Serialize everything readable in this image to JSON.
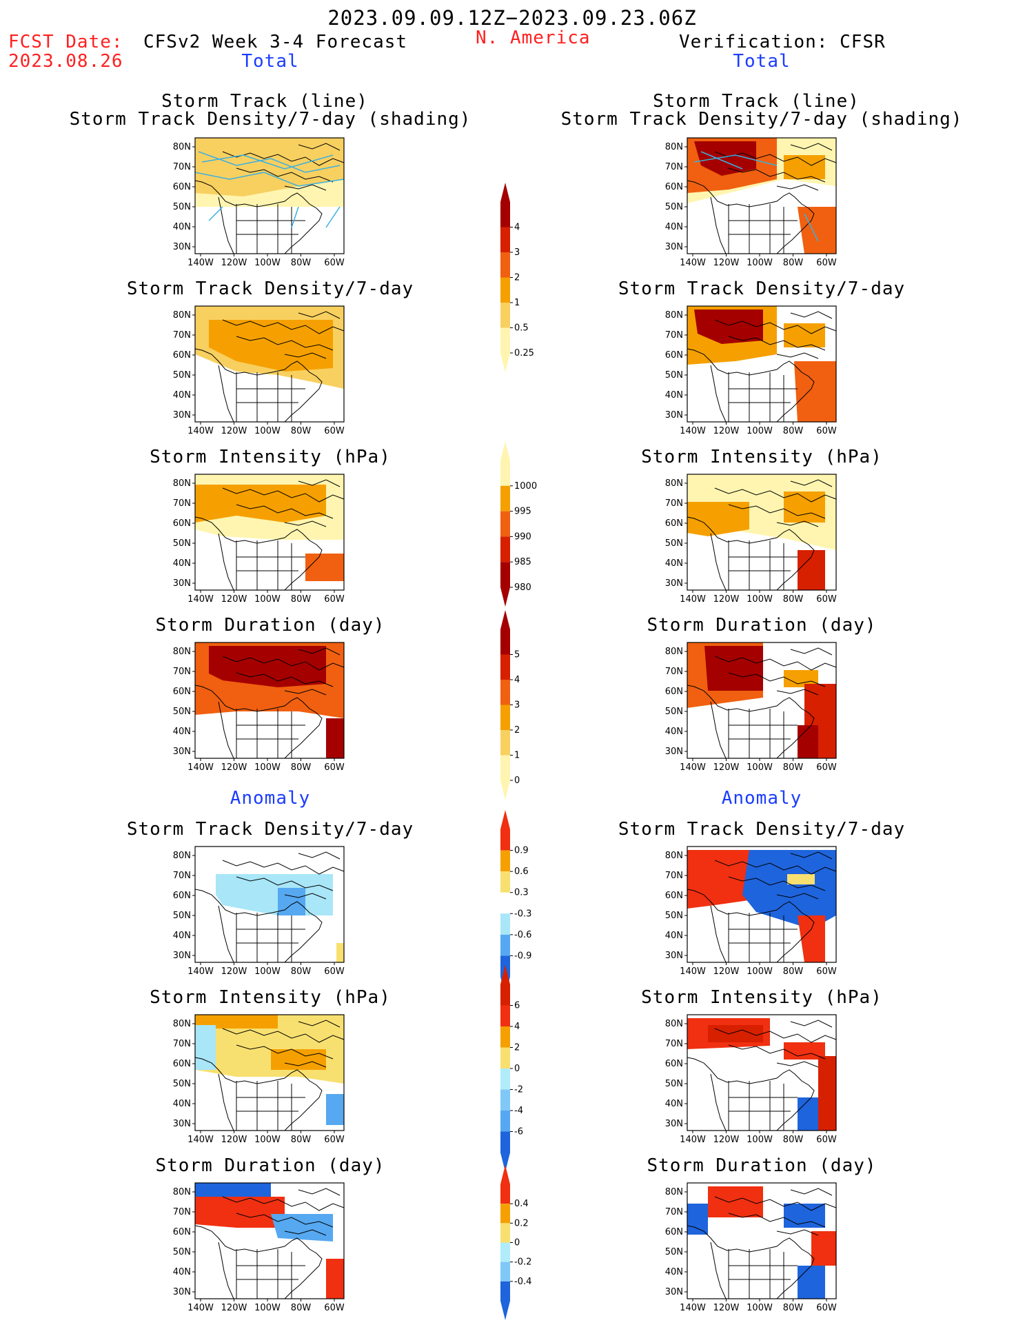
{
  "header": {
    "date_range": "2023.09.09.12Z−2023.09.23.06Z",
    "fcst_label": "FCST Date:",
    "fcst_date": "2023.08.26",
    "model_title": "CFSv2 Week 3-4 Forecast",
    "region": "N. America",
    "verification": "Verification: CFSR"
  },
  "sections": {
    "total": "Total",
    "anomaly": "Anomaly"
  },
  "panel_titles": {
    "track_line": "Storm Track (line)",
    "track_density_shading": "Storm Track Density/7-day (shading)",
    "track_density": "Storm Track Density/7-day",
    "intensity": "Storm Intensity (hPa)",
    "duration": "Storm Duration (day)"
  },
  "map_axes": {
    "lat_labels": [
      "80N",
      "70N",
      "60N",
      "50N",
      "40N",
      "30N"
    ],
    "lon_labels": [
      "140W",
      "120W",
      "100W",
      "80W",
      "60W"
    ]
  },
  "colorbars": [
    {
      "id": "density",
      "labels": [
        "4",
        "3",
        "2",
        "1",
        "0.5",
        "0.25"
      ],
      "colors": [
        "#a50000",
        "#d72000",
        "#f06010",
        "#f5a000",
        "#f8d060",
        "#fff5b0"
      ],
      "ends": "both"
    },
    {
      "id": "intensity",
      "labels": [
        "1000",
        "995",
        "990",
        "985",
        "980"
      ],
      "colors": [
        "#fff5b0",
        "#f5a000",
        "#f06010",
        "#d72000",
        "#a50000"
      ],
      "ends": "both"
    },
    {
      "id": "duration",
      "labels": [
        "5",
        "4",
        "3",
        "2",
        "1",
        "0"
      ],
      "colors": [
        "#a50000",
        "#d72000",
        "#f06010",
        "#f5a000",
        "#f8d060",
        "#fff5b0"
      ],
      "ends": "both"
    },
    {
      "id": "density_anom",
      "labels": [
        "0.9",
        "0.6",
        "0.3",
        "-0.3",
        "-0.6",
        "-0.9"
      ],
      "colors": [
        "#f03010",
        "#f5a000",
        "#f8e070",
        "#ffffff",
        "#a8e6f8",
        "#56a8f0",
        "#1e64dc"
      ],
      "ends": "both"
    },
    {
      "id": "intensity_anom",
      "labels": [
        "6",
        "4",
        "2",
        "0",
        "-2",
        "-4",
        "-6"
      ],
      "colors": [
        "#d72000",
        "#f03010",
        "#f5a000",
        "#f8e070",
        "#b0ecfa",
        "#80c8f8",
        "#56a8f0",
        "#1e64dc"
      ],
      "ends": "both"
    },
    {
      "id": "duration_anom",
      "labels": [
        "0.4",
        "0.2",
        "0",
        "-0.2",
        "-0.4"
      ],
      "colors": [
        "#f03010",
        "#f5a000",
        "#f8e070",
        "#b0ecfa",
        "#80c8f8",
        "#1e64dc"
      ],
      "ends": "both"
    }
  ]
}
